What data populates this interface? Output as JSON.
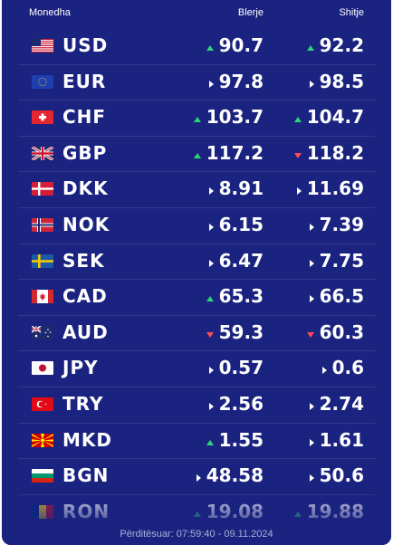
{
  "header": {
    "currency": "Monedha",
    "buy": "Blerje",
    "sell": "Shitje"
  },
  "rates": [
    {
      "code": "USD",
      "flag": "us-flag-icon",
      "buy": "90.7",
      "buy_trend": "up",
      "sell": "92.2",
      "sell_trend": "up"
    },
    {
      "code": "EUR",
      "flag": "eu-flag-icon",
      "buy": "97.8",
      "buy_trend": "same",
      "sell": "98.5",
      "sell_trend": "same"
    },
    {
      "code": "CHF",
      "flag": "ch-flag-icon",
      "buy": "103.7",
      "buy_trend": "up",
      "sell": "104.7",
      "sell_trend": "up"
    },
    {
      "code": "GBP",
      "flag": "gb-flag-icon",
      "buy": "117.2",
      "buy_trend": "up",
      "sell": "118.2",
      "sell_trend": "down"
    },
    {
      "code": "DKK",
      "flag": "dk-flag-icon",
      "buy": "8.91",
      "buy_trend": "same",
      "sell": "11.69",
      "sell_trend": "same"
    },
    {
      "code": "NOK",
      "flag": "no-flag-icon",
      "buy": "6.15",
      "buy_trend": "same",
      "sell": "7.39",
      "sell_trend": "same"
    },
    {
      "code": "SEK",
      "flag": "se-flag-icon",
      "buy": "6.47",
      "buy_trend": "same",
      "sell": "7.75",
      "sell_trend": "same"
    },
    {
      "code": "CAD",
      "flag": "ca-flag-icon",
      "buy": "65.3",
      "buy_trend": "up",
      "sell": "66.5",
      "sell_trend": "same"
    },
    {
      "code": "AUD",
      "flag": "au-flag-icon",
      "buy": "59.3",
      "buy_trend": "down",
      "sell": "60.3",
      "sell_trend": "down"
    },
    {
      "code": "JPY",
      "flag": "jp-flag-icon",
      "buy": "0.57",
      "buy_trend": "same",
      "sell": "0.6",
      "sell_trend": "same"
    },
    {
      "code": "TRY",
      "flag": "tr-flag-icon",
      "buy": "2.56",
      "buy_trend": "same",
      "sell": "2.74",
      "sell_trend": "same"
    },
    {
      "code": "MKD",
      "flag": "mk-flag-icon",
      "buy": "1.55",
      "buy_trend": "up",
      "sell": "1.61",
      "sell_trend": "same"
    },
    {
      "code": "BGN",
      "flag": "bg-flag-icon",
      "buy": "48.58",
      "buy_trend": "same",
      "sell": "50.6",
      "sell_trend": "same"
    },
    {
      "code": "RON",
      "flag": "ro-flag-icon",
      "buy": "19.08",
      "buy_trend": "up",
      "sell": "19.88",
      "sell_trend": "up"
    }
  ],
  "footer": {
    "updated": "Përditësuar: 07:59:40 - 09.11.2024"
  },
  "colors": {
    "background": "#1b2380",
    "up": "#2fd37a",
    "down": "#ff4a5a",
    "text": "#ffffff"
  }
}
